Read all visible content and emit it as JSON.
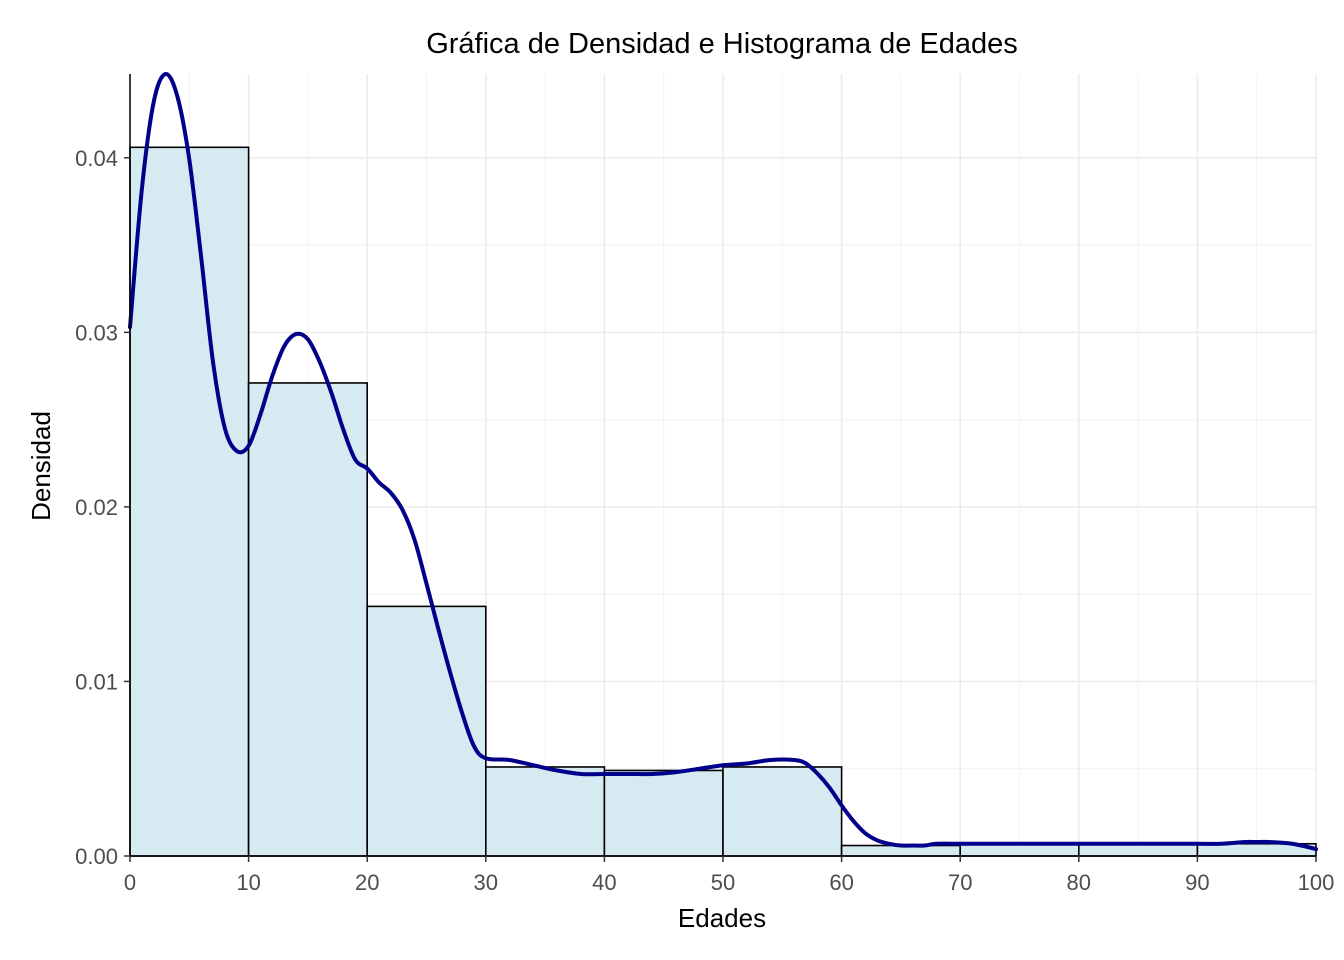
{
  "chart_data": {
    "type": "bar",
    "title": "Gráfica de Densidad e Histograma de Edades",
    "xlabel": "Edades",
    "ylabel": "Densidad",
    "xlim": [
      0,
      100
    ],
    "ylim": [
      0,
      0.0448
    ],
    "x_ticks": [
      0,
      10,
      20,
      30,
      40,
      50,
      60,
      70,
      80,
      90,
      100
    ],
    "x_tick_labels": [
      "0",
      "10",
      "20",
      "30",
      "40",
      "50",
      "60",
      "70",
      "80",
      "90",
      "100"
    ],
    "y_ticks": [
      0,
      0.01,
      0.02,
      0.03,
      0.04
    ],
    "y_tick_labels": [
      "0.00",
      "0.01",
      "0.02",
      "0.03",
      "0.04"
    ],
    "grid": true,
    "legend": "none",
    "histogram": {
      "bin_edges": [
        0,
        10,
        20,
        30,
        40,
        50,
        60,
        70,
        80,
        90,
        100
      ],
      "values": [
        0.0406,
        0.0271,
        0.0143,
        0.0051,
        0.0049,
        0.0051,
        0.0006,
        0.0007,
        0.0007,
        0.0007
      ],
      "fill_color": "#d6eaf1",
      "edge_color": "#000000"
    },
    "density_curve": {
      "color": "#00008b",
      "x": [
        0,
        1,
        2,
        3,
        4,
        5,
        6,
        7,
        8,
        9,
        10,
        11,
        12,
        13,
        14,
        15,
        16,
        17,
        18,
        19,
        20,
        21,
        22,
        23,
        24,
        25,
        26,
        27,
        28,
        29,
        30,
        32,
        34,
        36,
        38,
        40,
        42,
        44,
        46,
        48,
        50,
        52,
        54,
        56,
        57,
        58,
        59,
        60,
        61,
        62,
        63,
        64,
        65,
        66,
        67,
        68,
        70,
        72,
        75,
        78,
        80,
        83,
        86,
        88,
        90,
        92,
        94,
        95,
        96,
        98,
        100
      ],
      "y": [
        0.0303,
        0.0382,
        0.0432,
        0.0448,
        0.0435,
        0.0399,
        0.0343,
        0.0283,
        0.0245,
        0.0232,
        0.0235,
        0.0253,
        0.0275,
        0.0292,
        0.0299,
        0.0296,
        0.0283,
        0.0265,
        0.0244,
        0.0227,
        0.0222,
        0.0214,
        0.0208,
        0.0198,
        0.0181,
        0.0156,
        0.013,
        0.0105,
        0.0082,
        0.0063,
        0.0056,
        0.0055,
        0.0052,
        0.0049,
        0.0047,
        0.0047,
        0.0047,
        0.0047,
        0.0048,
        0.005,
        0.0052,
        0.0053,
        0.0055,
        0.0055,
        0.0053,
        0.0047,
        0.0039,
        0.0029,
        0.002,
        0.0013,
        0.0009,
        0.0007,
        0.0006,
        0.0006,
        0.0006,
        0.0007,
        0.0007,
        0.0007,
        0.0007,
        0.0007,
        0.0007,
        0.0007,
        0.0007,
        0.0007,
        0.0007,
        0.0007,
        0.0008,
        0.0008,
        0.0008,
        0.0007,
        0.0004
      ]
    }
  }
}
